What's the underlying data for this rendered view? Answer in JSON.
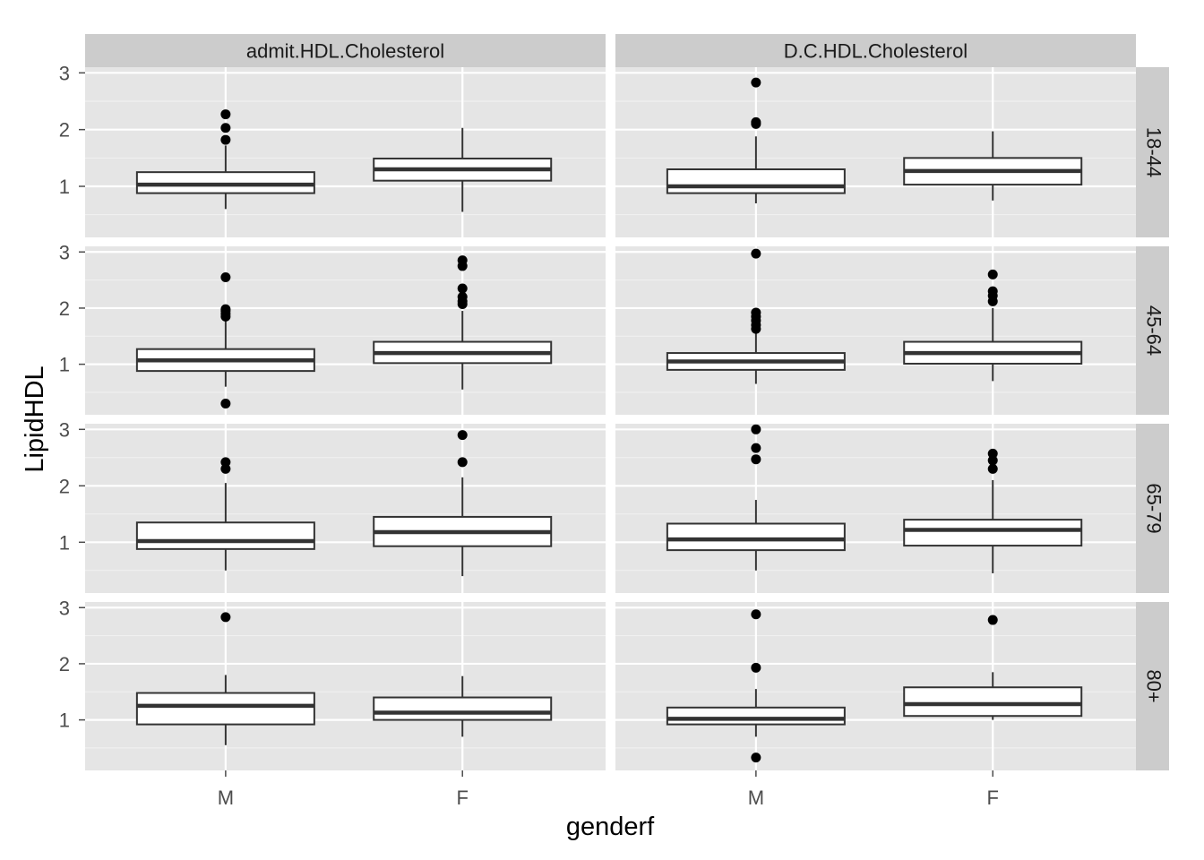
{
  "colors": {
    "panel_background": "#e5e5e5",
    "strip_background": "#cccccc",
    "grid_major": "#ffffff",
    "grid_minor": "#f2f2f2",
    "box_fill": "#ffffff",
    "box_line": "#333333",
    "outlier": "#000000"
  },
  "chart_data": {
    "type": "boxplot",
    "xlabel": "genderf",
    "ylabel": "LipidHDL",
    "x_categories": [
      "M",
      "F"
    ],
    "y_ticks": [
      1,
      2,
      3
    ],
    "ylim": [
      0.1,
      3.1
    ],
    "column_facets": [
      "admit.HDL.Cholesterol",
      "D.C.HDL.Cholesterol"
    ],
    "row_facets": [
      "18-44",
      "45-64",
      "65-79",
      "80+"
    ],
    "grid": true,
    "panels": [
      {
        "col": 0,
        "row": 0,
        "boxes": [
          {
            "x": "M",
            "whisker_low": 0.6,
            "q1": 0.88,
            "median": 1.03,
            "q3": 1.25,
            "whisker_high": 1.72,
            "outliers": [
              1.82,
              2.03,
              2.27
            ]
          },
          {
            "x": "F",
            "whisker_low": 0.55,
            "q1": 1.1,
            "median": 1.3,
            "q3": 1.49,
            "whisker_high": 2.03,
            "outliers": []
          }
        ]
      },
      {
        "col": 1,
        "row": 0,
        "boxes": [
          {
            "x": "M",
            "whisker_low": 0.7,
            "q1": 0.88,
            "median": 1.0,
            "q3": 1.3,
            "whisker_high": 1.88,
            "outliers": [
              2.1,
              2.13,
              2.83
            ]
          },
          {
            "x": "F",
            "whisker_low": 0.75,
            "q1": 1.03,
            "median": 1.27,
            "q3": 1.5,
            "whisker_high": 1.97,
            "outliers": []
          }
        ]
      },
      {
        "col": 0,
        "row": 1,
        "boxes": [
          {
            "x": "M",
            "whisker_low": 0.6,
            "q1": 0.88,
            "median": 1.07,
            "q3": 1.27,
            "whisker_high": 1.8,
            "outliers": [
              0.3,
              1.85,
              1.9,
              1.95,
              1.98,
              2.55
            ]
          },
          {
            "x": "F",
            "whisker_low": 0.55,
            "q1": 1.02,
            "median": 1.2,
            "q3": 1.4,
            "whisker_high": 1.95,
            "outliers": [
              2.07,
              2.12,
              2.2,
              2.35,
              2.75,
              2.85
            ]
          }
        ]
      },
      {
        "col": 1,
        "row": 1,
        "boxes": [
          {
            "x": "M",
            "whisker_low": 0.65,
            "q1": 0.9,
            "median": 1.05,
            "q3": 1.2,
            "whisker_high": 1.55,
            "outliers": [
              1.63,
              1.7,
              1.78,
              1.85,
              1.92,
              2.97
            ]
          },
          {
            "x": "F",
            "whisker_low": 0.7,
            "q1": 1.01,
            "median": 1.2,
            "q3": 1.4,
            "whisker_high": 2.0,
            "outliers": [
              2.12,
              2.22,
              2.3,
              2.6
            ]
          }
        ]
      },
      {
        "col": 0,
        "row": 2,
        "boxes": [
          {
            "x": "M",
            "whisker_low": 0.5,
            "q1": 0.88,
            "median": 1.02,
            "q3": 1.35,
            "whisker_high": 2.05,
            "outliers": [
              2.3,
              2.42
            ]
          },
          {
            "x": "F",
            "whisker_low": 0.4,
            "q1": 0.93,
            "median": 1.18,
            "q3": 1.45,
            "whisker_high": 2.15,
            "outliers": [
              2.42,
              2.9
            ]
          }
        ]
      },
      {
        "col": 1,
        "row": 2,
        "boxes": [
          {
            "x": "M",
            "whisker_low": 0.5,
            "q1": 0.86,
            "median": 1.05,
            "q3": 1.33,
            "whisker_high": 1.75,
            "outliers": [
              2.47,
              2.67,
              3.0
            ]
          },
          {
            "x": "F",
            "whisker_low": 0.45,
            "q1": 0.94,
            "median": 1.22,
            "q3": 1.4,
            "whisker_high": 2.1,
            "outliers": [
              2.3,
              2.45,
              2.57
            ]
          }
        ]
      },
      {
        "col": 0,
        "row": 3,
        "boxes": [
          {
            "x": "M",
            "whisker_low": 0.55,
            "q1": 0.92,
            "median": 1.25,
            "q3": 1.48,
            "whisker_high": 1.8,
            "outliers": [
              2.83
            ]
          },
          {
            "x": "F",
            "whisker_low": 0.7,
            "q1": 1.0,
            "median": 1.13,
            "q3": 1.4,
            "whisker_high": 1.78,
            "outliers": []
          }
        ]
      },
      {
        "col": 1,
        "row": 3,
        "boxes": [
          {
            "x": "M",
            "whisker_low": 0.7,
            "q1": 0.92,
            "median": 1.02,
            "q3": 1.22,
            "whisker_high": 1.55,
            "outliers": [
              0.33,
              1.93,
              2.88
            ]
          },
          {
            "x": "F",
            "whisker_low": 1.0,
            "q1": 1.07,
            "median": 1.28,
            "q3": 1.58,
            "whisker_high": 1.85,
            "outliers": [
              2.78
            ]
          }
        ]
      }
    ]
  }
}
